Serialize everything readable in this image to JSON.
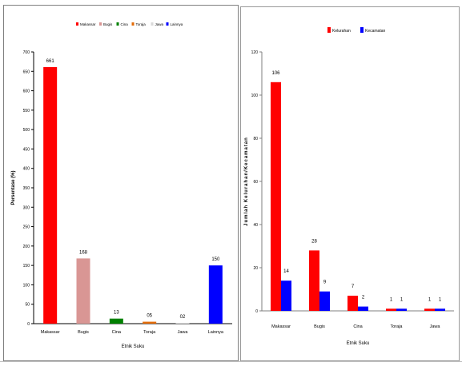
{
  "chart_data": [
    {
      "type": "bar",
      "ylabel": "Persentase (%)",
      "xlabel": "Etnik Suku",
      "ylim": [
        0,
        700
      ],
      "ytick_step": 50,
      "grid": false,
      "legend_position": "top",
      "categories": [
        "Makassar",
        "Bugis",
        "Cina",
        "Toraja",
        "Jawa",
        "Lainnya"
      ],
      "series": [
        {
          "values": [
            66.1,
            16.8,
            1.3,
            0.5,
            0.2,
            15.0
          ],
          "value_labels": [
            "661",
            "168",
            "13",
            "05",
            "02",
            "150"
          ],
          "colors": [
            "#ff0000",
            "#d99694",
            "#008000",
            "#e36c09",
            "#d9d9d9",
            "#0000ff"
          ]
        }
      ],
      "legend": [
        "Makassar",
        "Bugis",
        "Cina",
        "Toraja",
        "Jawa",
        "Lainnya"
      ],
      "legend_colors": [
        "#ff0000",
        "#d99694",
        "#008000",
        "#e36c09",
        "#d9d9d9",
        "#0000ff"
      ],
      "note": ""
    },
    {
      "type": "bar",
      "ylabel": "Jumlah Kelurahan/Kecamatan",
      "xlabel": "Etnik Suku",
      "ylim": [
        0,
        120
      ],
      "ytick_step": 20,
      "grid": false,
      "legend_position": "top",
      "categories": [
        "Makassar",
        "Bugis",
        "Cina",
        "Toraja",
        "Jawa"
      ],
      "series": [
        {
          "name": "Kelurahan",
          "color": "#ff0000",
          "values": [
            106,
            28,
            7,
            1,
            1
          ]
        },
        {
          "name": "Kecamatan",
          "color": "#0000ff",
          "values": [
            14,
            9,
            2,
            1,
            1
          ]
        }
      ]
    }
  ]
}
